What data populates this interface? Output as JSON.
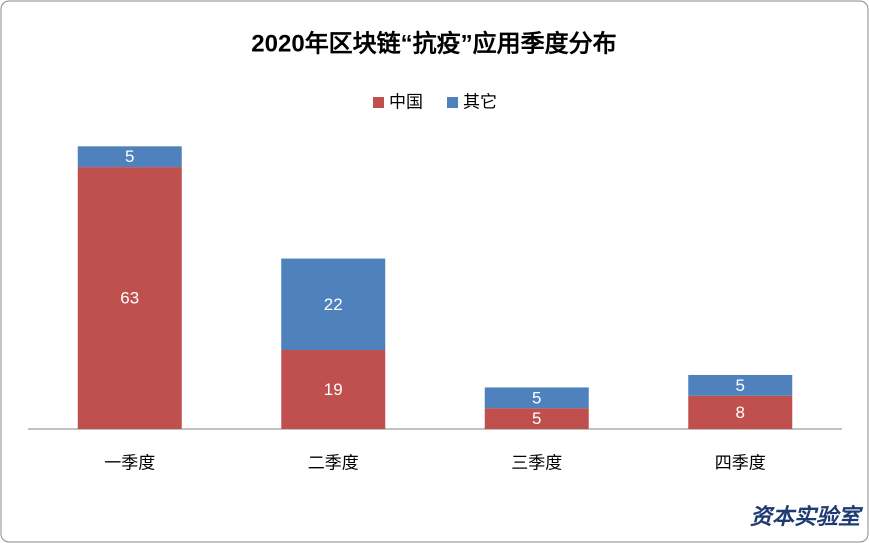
{
  "chart_data": {
    "type": "stacked_bar",
    "title": "2020年区块链“抗疫”应用季度分布",
    "categories": [
      "一季度",
      "二季度",
      "三季度",
      "四季度"
    ],
    "series": [
      {
        "name": "中国",
        "color": "#c0504d",
        "values": [
          63,
          19,
          5,
          8
        ]
      },
      {
        "name": "其它",
        "color": "#4f81bd",
        "values": [
          5,
          22,
          5,
          5
        ]
      }
    ],
    "ylim": [
      0,
      70
    ],
    "legend": "top",
    "watermark": "资本实验室"
  }
}
